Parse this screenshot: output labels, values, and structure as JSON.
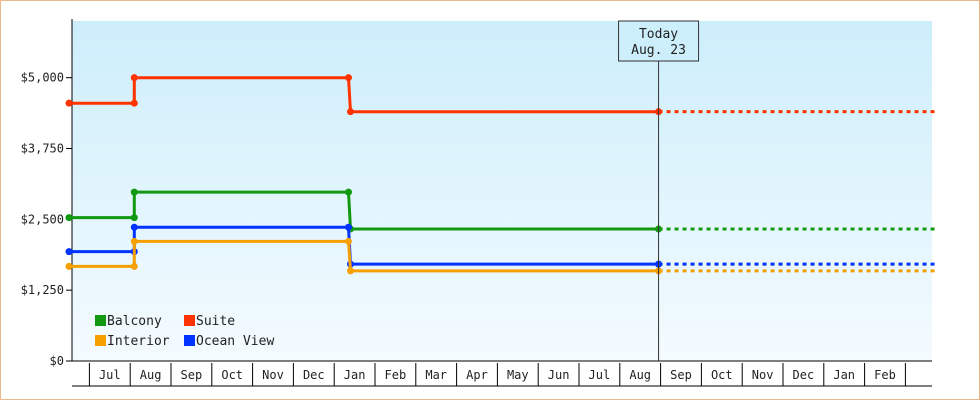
{
  "chart_data": {
    "type": "line",
    "subtype": "step",
    "title": "",
    "xlabel": "",
    "ylabel": "",
    "ylim": [
      0,
      6000
    ],
    "yticks": [
      0,
      1250,
      2500,
      3750,
      5000
    ],
    "ytick_labels": [
      "$0",
      "$1,250",
      "$2,500",
      "$3,750",
      "$5,000"
    ],
    "x_months": [
      "",
      "Jul",
      "Aug",
      "Sep",
      "Oct",
      "Nov",
      "Dec",
      "Jan",
      "Feb",
      "Mar",
      "Apr",
      "May",
      "Jun",
      "Jul",
      "Aug",
      "Sep",
      "Oct",
      "Nov",
      "Dec",
      "Jan",
      "Feb",
      ""
    ],
    "today_marker": {
      "line1": "Today",
      "line2": "Aug. 23",
      "x_month_index": 14.45
    },
    "grid": false,
    "legend_position": "bottom-left",
    "series": [
      {
        "name": "Suite",
        "color": "#ff3300",
        "points": [
          [
            0,
            4550
          ],
          [
            1.6,
            4550
          ],
          [
            1.6,
            5000
          ],
          [
            6.85,
            5000
          ],
          [
            6.9,
            4400
          ],
          [
            14.45,
            4400
          ]
        ],
        "projection_to": 21.3
      },
      {
        "name": "Balcony",
        "color": "#119911",
        "points": [
          [
            0,
            2530
          ],
          [
            1.6,
            2530
          ],
          [
            1.6,
            2980
          ],
          [
            6.85,
            2980
          ],
          [
            6.9,
            2330
          ],
          [
            14.45,
            2330
          ]
        ],
        "projection_to": 21.3
      },
      {
        "name": "Ocean View",
        "color": "#0033ff",
        "points": [
          [
            0,
            1930
          ],
          [
            1.6,
            1930
          ],
          [
            1.6,
            2360
          ],
          [
            6.85,
            2360
          ],
          [
            6.9,
            1710
          ],
          [
            14.45,
            1710
          ]
        ],
        "projection_to": 21.3
      },
      {
        "name": "Interior",
        "color": "#f5a000",
        "points": [
          [
            0,
            1670
          ],
          [
            1.6,
            1670
          ],
          [
            1.6,
            2110
          ],
          [
            6.85,
            2110
          ],
          [
            6.9,
            1590
          ],
          [
            14.45,
            1590
          ]
        ],
        "projection_to": 21.3
      }
    ],
    "legend": [
      {
        "name": "Balcony",
        "color": "#119911"
      },
      {
        "name": "Suite",
        "color": "#ff3300"
      },
      {
        "name": "Interior",
        "color": "#f5a000"
      },
      {
        "name": "Ocean View",
        "color": "#0033ff"
      }
    ]
  }
}
